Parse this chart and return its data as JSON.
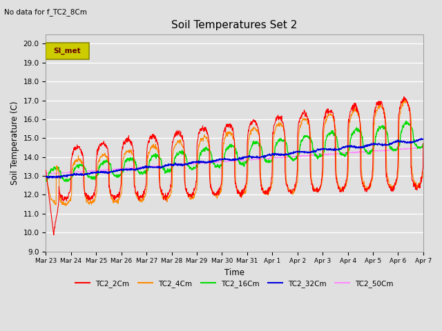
{
  "title": "Soil Temperatures Set 2",
  "subtitle": "No data for f_TC2_8Cm",
  "xlabel": "Time",
  "ylabel": "Soil Temperature (C)",
  "ylim": [
    9.0,
    20.5
  ],
  "yticks": [
    9.0,
    10.0,
    11.0,
    12.0,
    13.0,
    14.0,
    15.0,
    16.0,
    17.0,
    18.0,
    19.0,
    20.0
  ],
  "bg_color": "#e0e0e0",
  "series_colors": {
    "TC2_2Cm": "#ff0000",
    "TC2_4Cm": "#ff8800",
    "TC2_16Cm": "#00dd00",
    "TC2_32Cm": "#0000dd",
    "TC2_50Cm": "#ff88ff"
  },
  "legend_label": "SI_met",
  "tick_labels": [
    "Mar 23",
    "Mar 24",
    "Mar 25",
    "Mar 26",
    "Mar 27",
    "Mar 28",
    "Mar 29",
    "Mar 30",
    "Mar 31",
    "Apr 1",
    "Apr 2",
    "Apr 3",
    "Apr 4",
    "Apr 5",
    "Apr 6",
    "Apr 7"
  ]
}
